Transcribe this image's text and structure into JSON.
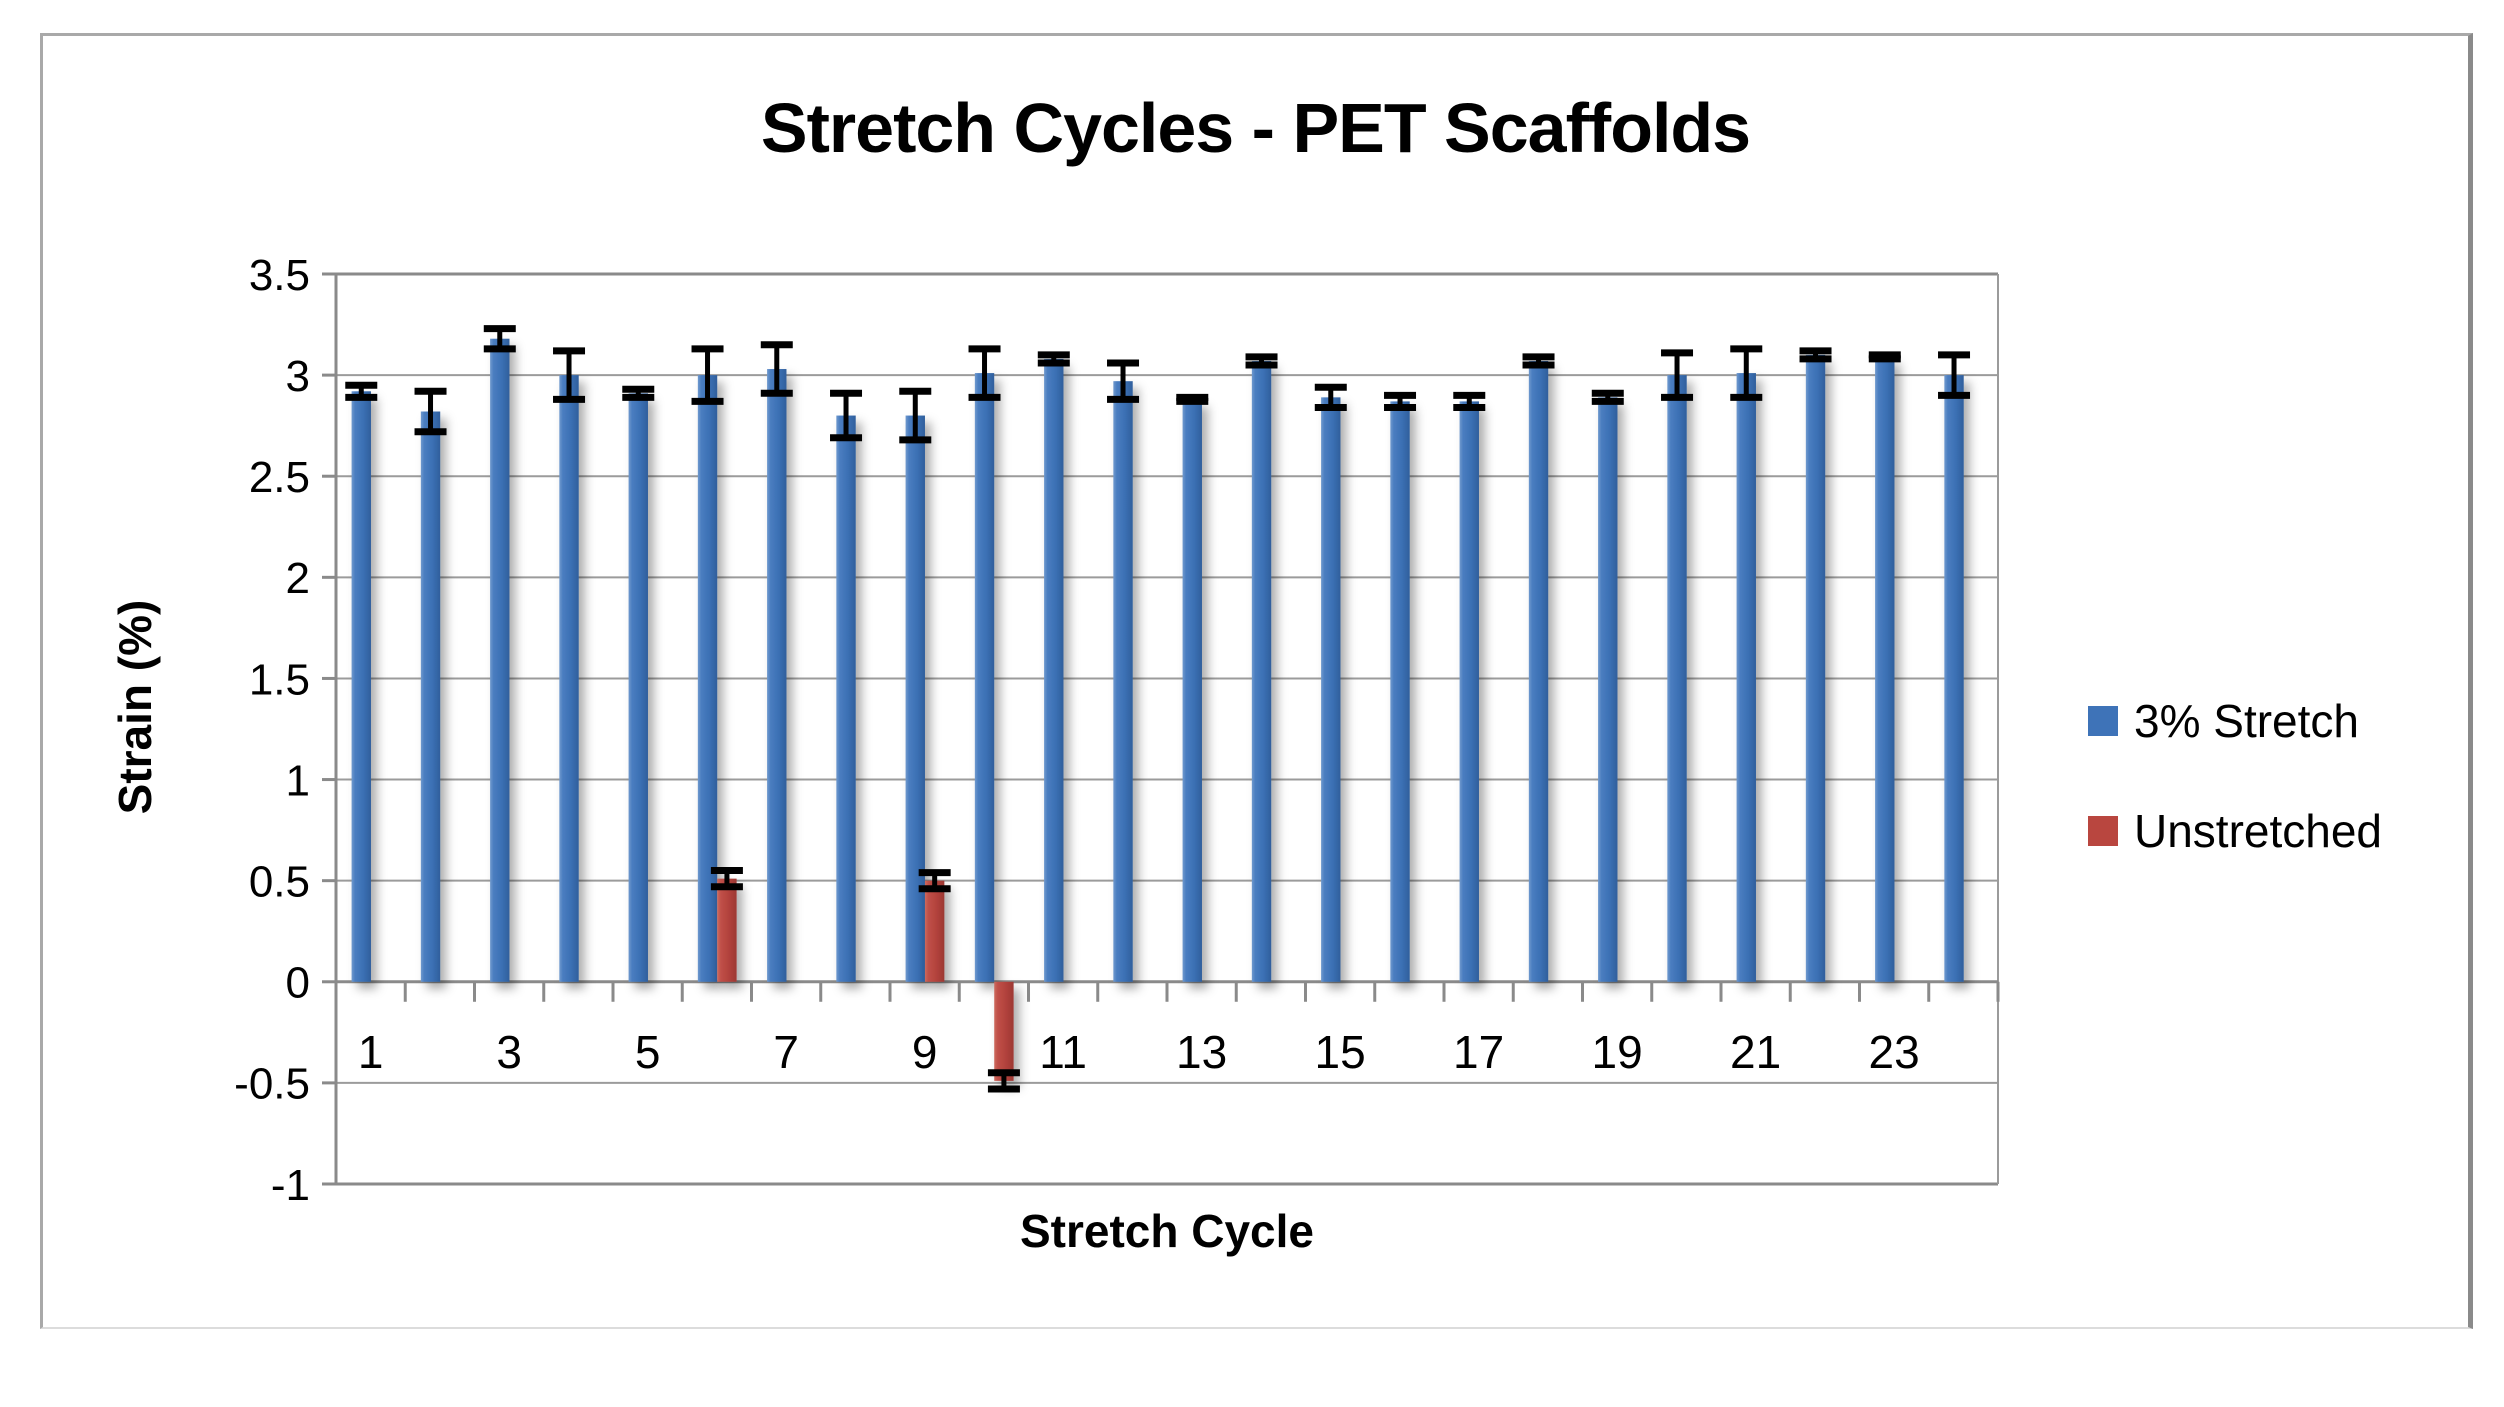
{
  "chart_data": {
    "type": "bar",
    "title": "Stretch Cycles - PET Scaffolds",
    "xlabel": "Stretch Cycle",
    "ylabel": "Strain (%)",
    "ylim": [
      -1,
      3.5
    ],
    "ytick_step": 0.5,
    "grid": true,
    "legend_position": "right",
    "categories": [
      1,
      2,
      3,
      4,
      5,
      6,
      7,
      8,
      9,
      10,
      11,
      12,
      13,
      14,
      15,
      16,
      17,
      18,
      19,
      20,
      21,
      22,
      23,
      24
    ],
    "x_tick_labels_shown": [
      1,
      3,
      5,
      7,
      9,
      11,
      13,
      15,
      17,
      19,
      21,
      23
    ],
    "series": [
      {
        "name": "3% Stretch",
        "color": "#3E73B8",
        "values": [
          2.92,
          2.82,
          3.18,
          3.0,
          2.91,
          3.0,
          3.03,
          2.8,
          2.8,
          3.01,
          3.08,
          2.97,
          2.88,
          3.07,
          2.89,
          2.87,
          2.87,
          3.07,
          2.89,
          3.0,
          3.01,
          3.1,
          3.09,
          3.0
        ],
        "errors": [
          0.03,
          0.1,
          0.05,
          0.12,
          0.02,
          0.13,
          0.12,
          0.11,
          0.12,
          0.12,
          0.02,
          0.09,
          0.01,
          0.02,
          0.05,
          0.03,
          0.03,
          0.02,
          0.02,
          0.11,
          0.12,
          0.02,
          0.01,
          0.1
        ]
      },
      {
        "name": "Unstretched",
        "color": "#B9463F",
        "values": [
          0,
          0,
          0,
          0,
          0,
          0.51,
          0,
          0,
          0.5,
          -0.49,
          0,
          0,
          0,
          0,
          0,
          0,
          0,
          0,
          0,
          0,
          0,
          0,
          0,
          0
        ],
        "errors": [
          0,
          0,
          0,
          0,
          0,
          0.04,
          0,
          0,
          0.04,
          0.04,
          0,
          0,
          0,
          0,
          0,
          0,
          0,
          0,
          0,
          0,
          0,
          0,
          0,
          0
        ]
      }
    ]
  }
}
